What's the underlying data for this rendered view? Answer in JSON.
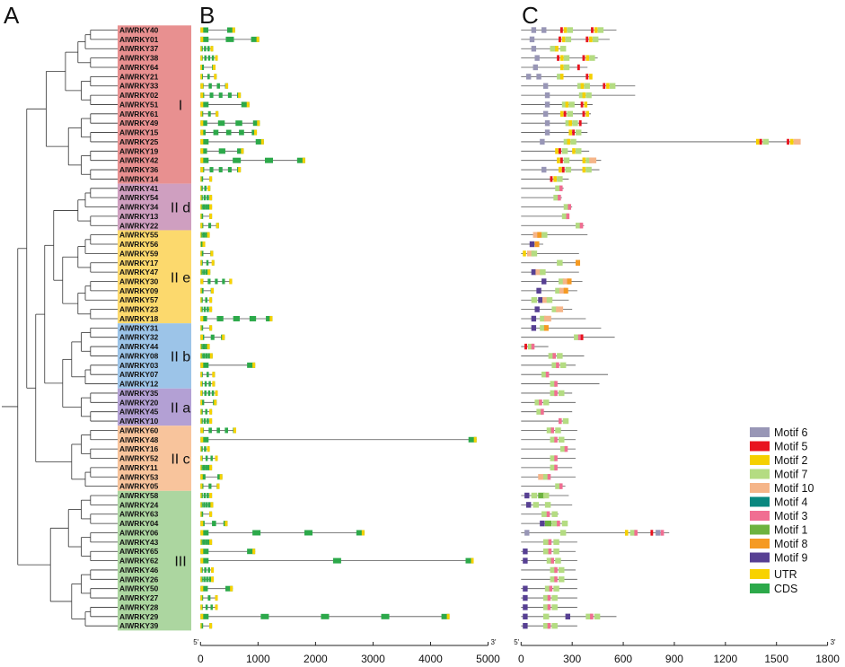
{
  "panels": [
    "A",
    "B",
    "C"
  ],
  "genes": [
    "AlWRKY40",
    "AlWRKY01",
    "AlWRKY37",
    "AlWRKY38",
    "AlWRKY64",
    "AlWRKY21",
    "AlWRKY33",
    "AlWRKY02",
    "AlWRKY51",
    "AlWRKY61",
    "AlWRKY49",
    "AlWRKY15",
    "AlWRKY25",
    "AlWRKY19",
    "AlWRKY42",
    "AlWRKY36",
    "AlWRKY14",
    "AlWRKY41",
    "AlWRKY54",
    "AlWRKY34",
    "AlWRKY13",
    "AlWRKY22",
    "AlWRKY55",
    "AlWRKY56",
    "AlWRKY59",
    "AlWRKY17",
    "AlWRKY47",
    "AlWRKY30",
    "AlWRKY09",
    "AlWRKY57",
    "AlWRKY23",
    "AlWRKY18",
    "AlWRKY31",
    "AlWRKY32",
    "AlWRKY44",
    "AlWRKY08",
    "AlWRKY03",
    "AlWRKY07",
    "AlWRKY12",
    "AlWRKY35",
    "AlWRKY20",
    "AlWRKY45",
    "AlWRKY10",
    "AlWRKY60",
    "AlWRKY48",
    "AlWRKY16",
    "AlWRKY52",
    "AlWRKY11",
    "AlWRKY53",
    "AlWRKY05",
    "AlWRKY58",
    "AlWRKY24",
    "AlWRKY63",
    "AlWRKY04",
    "AlWRKY06",
    "AlWRKY43",
    "AlWRKY65",
    "AlWRKY62",
    "AlWRKY46",
    "AlWRKY26",
    "AlWRKY50",
    "AlWRKY27",
    "AlWRKY28",
    "AlWRKY29",
    "AlWRKY39"
  ],
  "groups": [
    {
      "label": "I",
      "start": 0,
      "end": 16,
      "color": "#e89090"
    },
    {
      "label": "II d",
      "start": 17,
      "end": 21,
      "color": "#cf9fc0"
    },
    {
      "label": "II e",
      "start": 22,
      "end": 31,
      "color": "#fcd96d"
    },
    {
      "label": "II b",
      "start": 32,
      "end": 38,
      "color": "#9cc4e8"
    },
    {
      "label": "II a",
      "start": 39,
      "end": 42,
      "color": "#b3a0d4"
    },
    {
      "label": "II c",
      "start": 43,
      "end": 49,
      "color": "#f8c49c"
    },
    {
      "label": "III",
      "start": 50,
      "end": 64,
      "color": "#acd6a0"
    }
  ],
  "gene_lengths": [
    600,
    1020,
    220,
    300,
    260,
    280,
    480,
    700,
    850,
    310,
    1030,
    980,
    1100,
    750,
    1820,
    700,
    200,
    170,
    200,
    200,
    200,
    320,
    160,
    80,
    220,
    240,
    170,
    550,
    230,
    200,
    200,
    1250,
    200,
    420,
    160,
    210,
    950,
    250,
    250,
    300,
    280,
    200,
    200,
    620,
    4800,
    160,
    300,
    200,
    380,
    330,
    200,
    220,
    200,
    470,
    2850,
    200,
    950,
    4750,
    230,
    230,
    560,
    300,
    300,
    4330,
    200
  ],
  "protein_lengths": [
    560,
    520,
    250,
    450,
    390,
    410,
    670,
    670,
    420,
    410,
    390,
    390,
    1610,
    400,
    470,
    460,
    280,
    250,
    240,
    300,
    280,
    370,
    390,
    130,
    340,
    340,
    340,
    360,
    330,
    280,
    300,
    380,
    470,
    550,
    160,
    370,
    320,
    510,
    460,
    300,
    320,
    300,
    270,
    330,
    320,
    320,
    320,
    300,
    320,
    260,
    280,
    300,
    220,
    270,
    870,
    330,
    320,
    330,
    320,
    330,
    330,
    330,
    330,
    560,
    330
  ],
  "motif_data": [
    [
      [
        6,
        60
      ],
      [
        6,
        120
      ],
      [
        5,
        230
      ],
      [
        2,
        250
      ],
      [
        7,
        270
      ],
      [
        5,
        410
      ],
      [
        2,
        430
      ],
      [
        7,
        450
      ]
    ],
    [
      [
        6,
        50
      ],
      [
        5,
        220
      ],
      [
        2,
        240
      ],
      [
        7,
        260
      ],
      [
        5,
        380
      ],
      [
        2,
        400
      ],
      [
        7,
        420
      ]
    ],
    [
      [
        6,
        60
      ],
      [
        7,
        170
      ],
      [
        2,
        200
      ],
      [
        7,
        230
      ]
    ],
    [
      [
        6,
        80
      ],
      [
        5,
        210
      ],
      [
        2,
        230
      ],
      [
        7,
        250
      ],
      [
        5,
        360
      ],
      [
        2,
        380
      ],
      [
        7,
        400
      ]
    ],
    [
      [
        6,
        70
      ],
      [
        2,
        230
      ],
      [
        7,
        250
      ],
      [
        5,
        330
      ]
    ],
    [
      [
        6,
        30
      ],
      [
        6,
        90
      ],
      [
        7,
        210
      ],
      [
        2,
        230
      ],
      [
        5,
        380
      ],
      [
        2,
        400
      ]
    ],
    [
      [
        6,
        130
      ],
      [
        7,
        330
      ],
      [
        2,
        350
      ],
      [
        7,
        370
      ],
      [
        5,
        480
      ],
      [
        2,
        500
      ],
      [
        7,
        520
      ]
    ],
    [
      [
        6,
        140
      ],
      [
        7,
        340
      ],
      [
        2,
        360
      ],
      [
        7,
        380
      ]
    ],
    [
      [
        6,
        140
      ],
      [
        7,
        240
      ],
      [
        2,
        260
      ],
      [
        7,
        280
      ],
      [
        5,
        350
      ],
      [
        2,
        370
      ]
    ],
    [
      [
        6,
        130
      ],
      [
        2,
        230
      ],
      [
        5,
        250
      ],
      [
        7,
        270
      ],
      [
        5,
        360
      ],
      [
        2,
        380
      ]
    ],
    [
      [
        6,
        140
      ],
      [
        7,
        260
      ],
      [
        2,
        280
      ],
      [
        7,
        300
      ],
      [
        5,
        340
      ]
    ],
    [
      [
        6,
        140
      ],
      [
        2,
        280
      ],
      [
        5,
        300
      ],
      [
        7,
        320
      ]
    ],
    [
      [
        6,
        110
      ],
      [
        7,
        250
      ],
      [
        2,
        270
      ],
      [
        7,
        290
      ],
      [
        2,
        1380
      ],
      [
        5,
        1400
      ],
      [
        7,
        1420
      ],
      [
        5,
        1560
      ],
      [
        2,
        1580
      ],
      [
        10,
        1600
      ]
    ],
    [
      [
        2,
        200
      ],
      [
        5,
        220
      ],
      [
        7,
        240
      ],
      [
        2,
        300
      ],
      [
        7,
        320
      ]
    ],
    [
      [
        2,
        210
      ],
      [
        5,
        230
      ],
      [
        7,
        250
      ],
      [
        2,
        360
      ],
      [
        7,
        380
      ],
      [
        10,
        400
      ]
    ],
    [
      [
        6,
        120
      ],
      [
        2,
        220
      ],
      [
        5,
        240
      ],
      [
        7,
        260
      ],
      [
        2,
        360
      ],
      [
        7,
        380
      ]
    ],
    [
      [
        5,
        170
      ],
      [
        2,
        190
      ],
      [
        7,
        210
      ]
    ],
    [
      [
        7,
        200
      ],
      [
        3,
        225
      ]
    ],
    [
      [
        7,
        190
      ],
      [
        3,
        215
      ]
    ],
    [
      [
        7,
        250
      ],
      [
        3,
        275
      ]
    ],
    [
      [
        7,
        240
      ],
      [
        3,
        265
      ]
    ],
    [
      [
        7,
        320
      ],
      [
        3,
        345
      ]
    ],
    [
      [
        10,
        70
      ],
      [
        8,
        95
      ],
      [
        7,
        120
      ]
    ],
    [
      [
        9,
        50
      ],
      [
        8,
        80
      ]
    ],
    [
      [
        2,
        10
      ],
      [
        10,
        35
      ],
      [
        7,
        60
      ]
    ],
    [
      [
        7,
        210
      ],
      [
        8,
        320
      ]
    ],
    [
      [
        9,
        60
      ],
      [
        10,
        85
      ],
      [
        7,
        110
      ]
    ],
    [
      [
        9,
        120
      ],
      [
        7,
        220
      ],
      [
        10,
        245
      ],
      [
        8,
        270
      ]
    ],
    [
      [
        9,
        90
      ],
      [
        7,
        200
      ],
      [
        10,
        225
      ],
      [
        8,
        250
      ]
    ],
    [
      [
        7,
        60
      ],
      [
        9,
        100
      ],
      [
        10,
        125
      ],
      [
        7,
        150
      ]
    ],
    [
      [
        9,
        80
      ],
      [
        7,
        180
      ],
      [
        10,
        205
      ]
    ],
    [
      [
        9,
        60
      ],
      [
        7,
        110
      ],
      [
        10,
        135
      ]
    ],
    [
      [
        9,
        60
      ],
      [
        7,
        110
      ],
      [
        8,
        135
      ]
    ],
    [
      [
        7,
        310
      ],
      [
        3,
        335
      ],
      [
        5,
        350
      ]
    ],
    [
      [
        5,
        20
      ],
      [
        7,
        40
      ],
      [
        3,
        60
      ]
    ],
    [
      [
        7,
        160
      ],
      [
        3,
        185
      ],
      [
        7,
        210
      ]
    ],
    [
      [
        7,
        180
      ],
      [
        3,
        205
      ],
      [
        7,
        230
      ]
    ],
    [
      [
        7,
        120
      ],
      [
        3,
        145
      ]
    ],
    [
      [
        7,
        170
      ],
      [
        3,
        195
      ]
    ],
    [
      [
        7,
        170
      ],
      [
        3,
        195
      ],
      [
        7,
        220
      ]
    ],
    [
      [
        7,
        80
      ],
      [
        3,
        105
      ],
      [
        7,
        130
      ]
    ],
    [
      [
        7,
        90
      ],
      [
        3,
        115
      ]
    ],
    [
      [
        3,
        220
      ],
      [
        7,
        245
      ]
    ],
    [
      [
        7,
        150
      ],
      [
        3,
        175
      ],
      [
        7,
        200
      ]
    ],
    [
      [
        7,
        170
      ],
      [
        3,
        195
      ],
      [
        7,
        220
      ]
    ],
    [
      [
        7,
        230
      ],
      [
        3,
        255
      ]
    ],
    [
      [
        7,
        170
      ],
      [
        3,
        195
      ]
    ],
    [
      [
        7,
        170
      ],
      [
        3,
        195
      ]
    ],
    [
      [
        10,
        100
      ],
      [
        7,
        130
      ],
      [
        3,
        155
      ]
    ],
    [
      [
        7,
        200
      ],
      [
        3,
        225
      ]
    ],
    [
      [
        9,
        20
      ],
      [
        7,
        60
      ],
      [
        1,
        100
      ],
      [
        7,
        130
      ]
    ],
    [
      [
        9,
        30
      ],
      [
        7,
        70
      ],
      [
        7,
        140
      ]
    ],
    [
      [
        7,
        120
      ],
      [
        3,
        150
      ],
      [
        7,
        180
      ]
    ],
    [
      [
        9,
        110
      ],
      [
        1,
        140
      ],
      [
        7,
        180
      ],
      [
        3,
        210
      ],
      [
        7,
        240
      ]
    ],
    [
      [
        6,
        20
      ],
      [
        7,
        230
      ],
      [
        2,
        610
      ],
      [
        7,
        640
      ],
      [
        3,
        665
      ],
      [
        5,
        760
      ],
      [
        6,
        790
      ],
      [
        3,
        820
      ]
    ],
    [
      [
        7,
        130
      ],
      [
        3,
        160
      ],
      [
        7,
        190
      ]
    ],
    [
      [
        9,
        10
      ],
      [
        7,
        130
      ],
      [
        3,
        160
      ],
      [
        7,
        190
      ]
    ],
    [
      [
        9,
        10
      ],
      [
        7,
        150
      ],
      [
        3,
        175
      ],
      [
        7,
        200
      ]
    ],
    [
      [
        7,
        170
      ],
      [
        3,
        195
      ],
      [
        7,
        220
      ]
    ],
    [
      [
        7,
        170
      ],
      [
        3,
        195
      ],
      [
        7,
        220
      ]
    ],
    [
      [
        9,
        10
      ],
      [
        7,
        140
      ],
      [
        3,
        165
      ],
      [
        7,
        190
      ]
    ],
    [
      [
        9,
        10
      ],
      [
        7,
        130
      ],
      [
        3,
        155
      ],
      [
        7,
        180
      ]
    ],
    [
      [
        9,
        10
      ],
      [
        7,
        130
      ],
      [
        3,
        155
      ],
      [
        7,
        180
      ]
    ],
    [
      [
        9,
        10
      ],
      [
        7,
        130
      ],
      [
        9,
        260
      ],
      [
        7,
        380
      ],
      [
        3,
        405
      ],
      [
        7,
        430
      ]
    ],
    [
      [
        9,
        10
      ],
      [
        7,
        130
      ],
      [
        3,
        155
      ],
      [
        7,
        180
      ]
    ]
  ],
  "axis_b": {
    "ticks": [
      0,
      1000,
      2000,
      3000,
      4000,
      5000
    ],
    "tick_labels": [
      "0",
      "1000",
      "2000",
      "3000",
      "4000",
      "5000"
    ],
    "start_label": "5'",
    "end_label": "3'"
  },
  "axis_c": {
    "ticks": [
      0,
      300,
      600,
      900,
      1200,
      1500,
      1800
    ],
    "tick_labels": [
      "0",
      "300",
      "600",
      "900",
      "1200",
      "1500",
      "1800"
    ],
    "start_label": "5'",
    "end_label": "3'"
  },
  "motif_legend": [
    {
      "label": "Motif 6",
      "color": "#9896b6",
      "id": 6
    },
    {
      "label": "Motif 5",
      "color": "#e8141f",
      "id": 5
    },
    {
      "label": "Motif 2",
      "color": "#f5d000",
      "id": 2
    },
    {
      "label": "Motif 7",
      "color": "#b4dc82",
      "id": 7
    },
    {
      "label": "Motif 10",
      "color": "#f5b589",
      "id": 10
    },
    {
      "label": "Motif 4",
      "color": "#0a8880",
      "id": 4
    },
    {
      "label": "Motif 3",
      "color": "#f06e92",
      "id": 3
    },
    {
      "label": "Motif 1",
      "color": "#6db33f",
      "id": 1
    },
    {
      "label": "Motif 8",
      "color": "#f59a23",
      "id": 8
    },
    {
      "label": "Motif 9",
      "color": "#574093",
      "id": 9
    }
  ],
  "structure_legend": [
    {
      "label": "UTR",
      "color": "#f8d200"
    },
    {
      "label": "CDS",
      "color": "#2ca94a"
    }
  ]
}
